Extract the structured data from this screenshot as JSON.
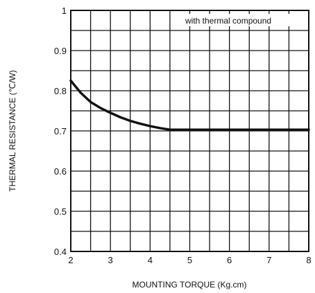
{
  "chart_data": {
    "type": "line",
    "xlabel": "MOUNTING TORQUE (Kg.cm)",
    "ylabel": "THERMAL RESISTANCE (℃/W)",
    "annotation": "with thermal compound",
    "xlim": [
      2,
      8
    ],
    "ylim": [
      0.4,
      1.0
    ],
    "x_ticks": [
      "2",
      "3",
      "4",
      "5",
      "6",
      "7",
      "8"
    ],
    "y_ticks": [
      "0.4",
      "0.5",
      "0.6",
      "0.7",
      "0.8",
      "0.9",
      "1"
    ],
    "grid": true,
    "x_grid_step": 0.5,
    "y_grid_step": 0.05,
    "line_color": "#111111",
    "series": [
      {
        "x": [
          2.0,
          2.25,
          2.5,
          2.75,
          3.0,
          3.25,
          3.5,
          3.75,
          4.0,
          4.25,
          4.5,
          5.0,
          6.0,
          7.0,
          8.0
        ],
        "y": [
          0.825,
          0.795,
          0.772,
          0.757,
          0.745,
          0.734,
          0.725,
          0.718,
          0.712,
          0.707,
          0.703,
          0.703,
          0.703,
          0.703,
          0.703
        ]
      }
    ]
  }
}
